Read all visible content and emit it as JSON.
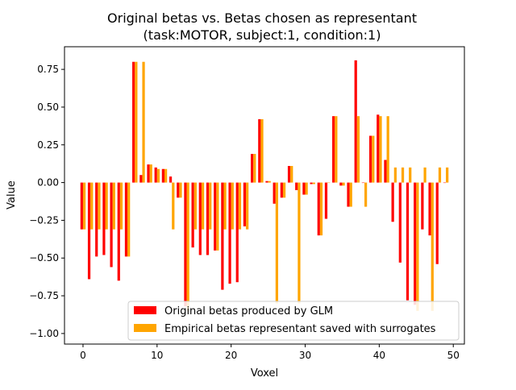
{
  "chart_data": {
    "type": "bar",
    "title": "Original betas vs. Betas chosen as representant",
    "subtitle": "(task:MOTOR, subject:1, condition:1)",
    "xlabel": "Voxel",
    "ylabel": "Value",
    "xlim": [
      -2.5,
      51.5
    ],
    "ylim": [
      -1.07,
      0.9
    ],
    "x_ticks": [
      0,
      10,
      20,
      30,
      40,
      50
    ],
    "y_ticks": [
      -1.0,
      -0.75,
      -0.5,
      -0.25,
      0.0,
      0.25,
      0.5,
      0.75
    ],
    "y_tick_labels": [
      "−1.00",
      "−0.75",
      "−0.50",
      "−0.25",
      "0.00",
      "0.25",
      "0.50",
      "0.75"
    ],
    "grid": false,
    "legend_position": "lower-right",
    "x": [
      0,
      1,
      2,
      3,
      4,
      5,
      6,
      7,
      8,
      9,
      10,
      11,
      12,
      13,
      14,
      15,
      16,
      17,
      18,
      19,
      20,
      21,
      22,
      23,
      24,
      25,
      26,
      27,
      28,
      29,
      30,
      31,
      32,
      33,
      34,
      35,
      36,
      37,
      38,
      39,
      40,
      41,
      42,
      43,
      44,
      45,
      46,
      47,
      48,
      49
    ],
    "series": [
      {
        "name": "Original betas produced by GLM",
        "color": "#ff0000",
        "values": [
          -0.31,
          -0.64,
          -0.49,
          -0.48,
          -0.56,
          -0.65,
          -0.49,
          0.8,
          0.05,
          0.12,
          0.1,
          0.09,
          0.04,
          -0.1,
          -0.82,
          -0.43,
          -0.48,
          -0.48,
          -0.45,
          -0.71,
          -0.67,
          -0.66,
          -0.29,
          0.19,
          0.42,
          0.01,
          -0.14,
          -0.1,
          0.11,
          -0.05,
          -0.08,
          -0.01,
          -0.35,
          -0.24,
          0.44,
          -0.02,
          -0.16,
          0.81,
          0.0,
          0.31,
          0.45,
          0.15,
          -0.26,
          -0.53,
          -0.78,
          -0.81,
          -0.31,
          -0.35,
          -0.54,
          0.0
        ]
      },
      {
        "name": "Empirical betas representant saved with surrogates",
        "color": "#ffa500",
        "values": [
          -0.31,
          -0.31,
          -0.31,
          -0.31,
          -0.31,
          -0.31,
          -0.49,
          0.8,
          0.8,
          0.12,
          0.09,
          0.09,
          -0.31,
          -0.1,
          -0.85,
          -0.31,
          -0.31,
          -0.31,
          -0.45,
          -0.31,
          -0.31,
          -0.31,
          -0.31,
          0.19,
          0.42,
          0.01,
          -0.8,
          -0.1,
          0.11,
          -0.8,
          -0.08,
          -0.01,
          -0.35,
          0.0,
          0.44,
          -0.02,
          -0.16,
          0.44,
          -0.16,
          0.31,
          0.44,
          0.44,
          0.1,
          0.1,
          0.1,
          -0.85,
          0.1,
          -0.85,
          0.1,
          0.1
        ]
      }
    ]
  }
}
